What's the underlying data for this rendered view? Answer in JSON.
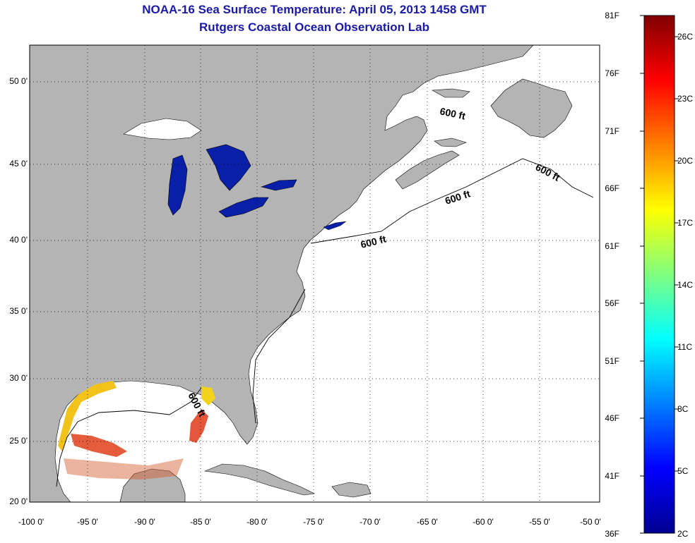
{
  "title": "NOAA-16 Sea Surface Temperature:  April 05, 2013 1458 GMT",
  "subtitle": "Rutgers Coastal Ocean Observation Lab",
  "map": {
    "lat_labels": [
      "50 0'",
      "45 0'",
      "40 0'",
      "35 0'",
      "30 0'",
      "25 0'",
      "20 0'"
    ],
    "lon_labels": [
      "-100 0'",
      "-95 0'",
      "-90 0'",
      "-85 0'",
      "-80 0'",
      "-75 0'",
      "-70 0'",
      "-65 0'",
      "-60 0'",
      "-55 0'",
      "-50 0'"
    ],
    "contour_labels": [
      "600 ft",
      "600 ft",
      "600 ft",
      "600 ft",
      "600 ft"
    ],
    "colors": {
      "land": "#b4b4b4",
      "water": "#ffffff",
      "great_lakes_sst": "#0a1fa8",
      "gulf_sst_warm": "#e0401a",
      "gulf_sst_cool": "#f2c21a"
    }
  },
  "colorbar": {
    "fahrenheit_labels": [
      "81F",
      "76F",
      "71F",
      "66F",
      "61F",
      "56F",
      "51F",
      "46F",
      "41F",
      "36F"
    ],
    "celsius_labels": [
      "26C",
      "23C",
      "20C",
      "17C",
      "14C",
      "11C",
      "8C",
      "5C",
      "2C"
    ],
    "range_f": [
      36,
      81
    ],
    "range_c": [
      2,
      27
    ]
  }
}
